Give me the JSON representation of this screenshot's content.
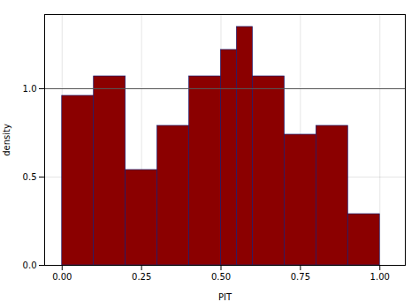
{
  "chart_data": {
    "type": "histogram",
    "bins": [
      0.0,
      0.1,
      0.2,
      0.3,
      0.4,
      0.5,
      0.55,
      0.6,
      0.7,
      0.8,
      0.9,
      1.0
    ],
    "values": [
      0.96,
      1.07,
      0.54,
      0.79,
      1.07,
      1.22,
      1.35,
      1.07,
      0.74,
      0.79,
      0.29
    ],
    "color": "#8B0000",
    "hline": 1.0,
    "xlabel": "PIT",
    "ylabel": "density",
    "xlim": [
      -0.055,
      1.08
    ],
    "ylim": [
      0.0,
      1.42
    ],
    "xticks": [
      {
        "value": 0.0,
        "label": "0.00"
      },
      {
        "value": 0.25,
        "label": "0.25"
      },
      {
        "value": 0.5,
        "label": "0.50"
      },
      {
        "value": 0.75,
        "label": "0.75"
      },
      {
        "value": 1.0,
        "label": "1.00"
      }
    ],
    "yticks": [
      {
        "value": 0.0,
        "label": "0.0"
      },
      {
        "value": 0.5,
        "label": "0.5"
      },
      {
        "value": 1.0,
        "label": "1.0"
      }
    ],
    "grid": true
  }
}
